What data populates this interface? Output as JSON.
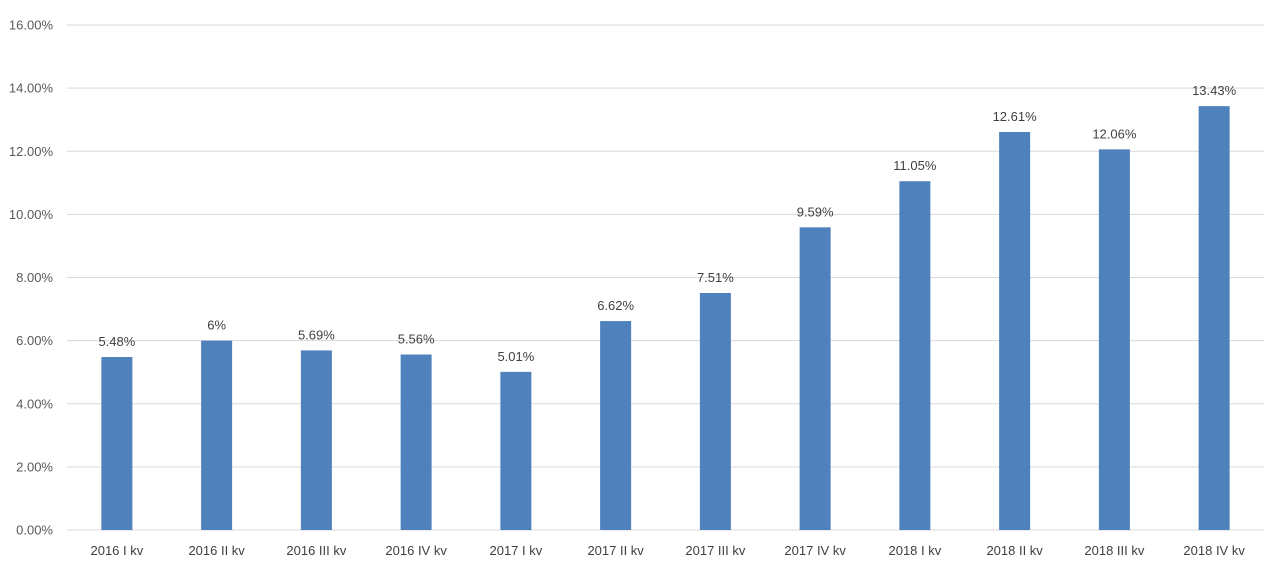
{
  "chart_data": {
    "type": "bar",
    "title": "",
    "xlabel": "",
    "ylabel": "",
    "categories": [
      "2016 I kv",
      "2016 II kv",
      "2016 III kv",
      "2016 IV kv",
      "2017 I kv",
      "2017 II kv",
      "2017 III kv",
      "2017 IV kv",
      "2018 I kv",
      "2018 II kv",
      "2018 III kv",
      "2018 IV kv"
    ],
    "values": [
      5.48,
      6,
      5.69,
      5.56,
      5.01,
      6.62,
      7.51,
      9.59,
      11.05,
      12.61,
      12.06,
      13.43
    ],
    "value_labels": [
      "5.48%",
      "6%",
      "5.69%",
      "5.56%",
      "5.01%",
      "6.62%",
      "7.51%",
      "9.59%",
      "11.05%",
      "12.61%",
      "12.06%",
      "13.43%"
    ],
    "ylim": [
      0,
      16
    ],
    "yticks": [
      0,
      2,
      4,
      6,
      8,
      10,
      12,
      14,
      16
    ],
    "ytick_labels": [
      "0.00%",
      "2.00%",
      "4.00%",
      "6.00%",
      "8.00%",
      "10.00%",
      "12.00%",
      "14.00%",
      "16.00%"
    ],
    "grid": true,
    "legend": "none",
    "colors": {
      "bar": "#4f81bd",
      "grid": "#d9d9d9",
      "text": "#404040"
    }
  }
}
